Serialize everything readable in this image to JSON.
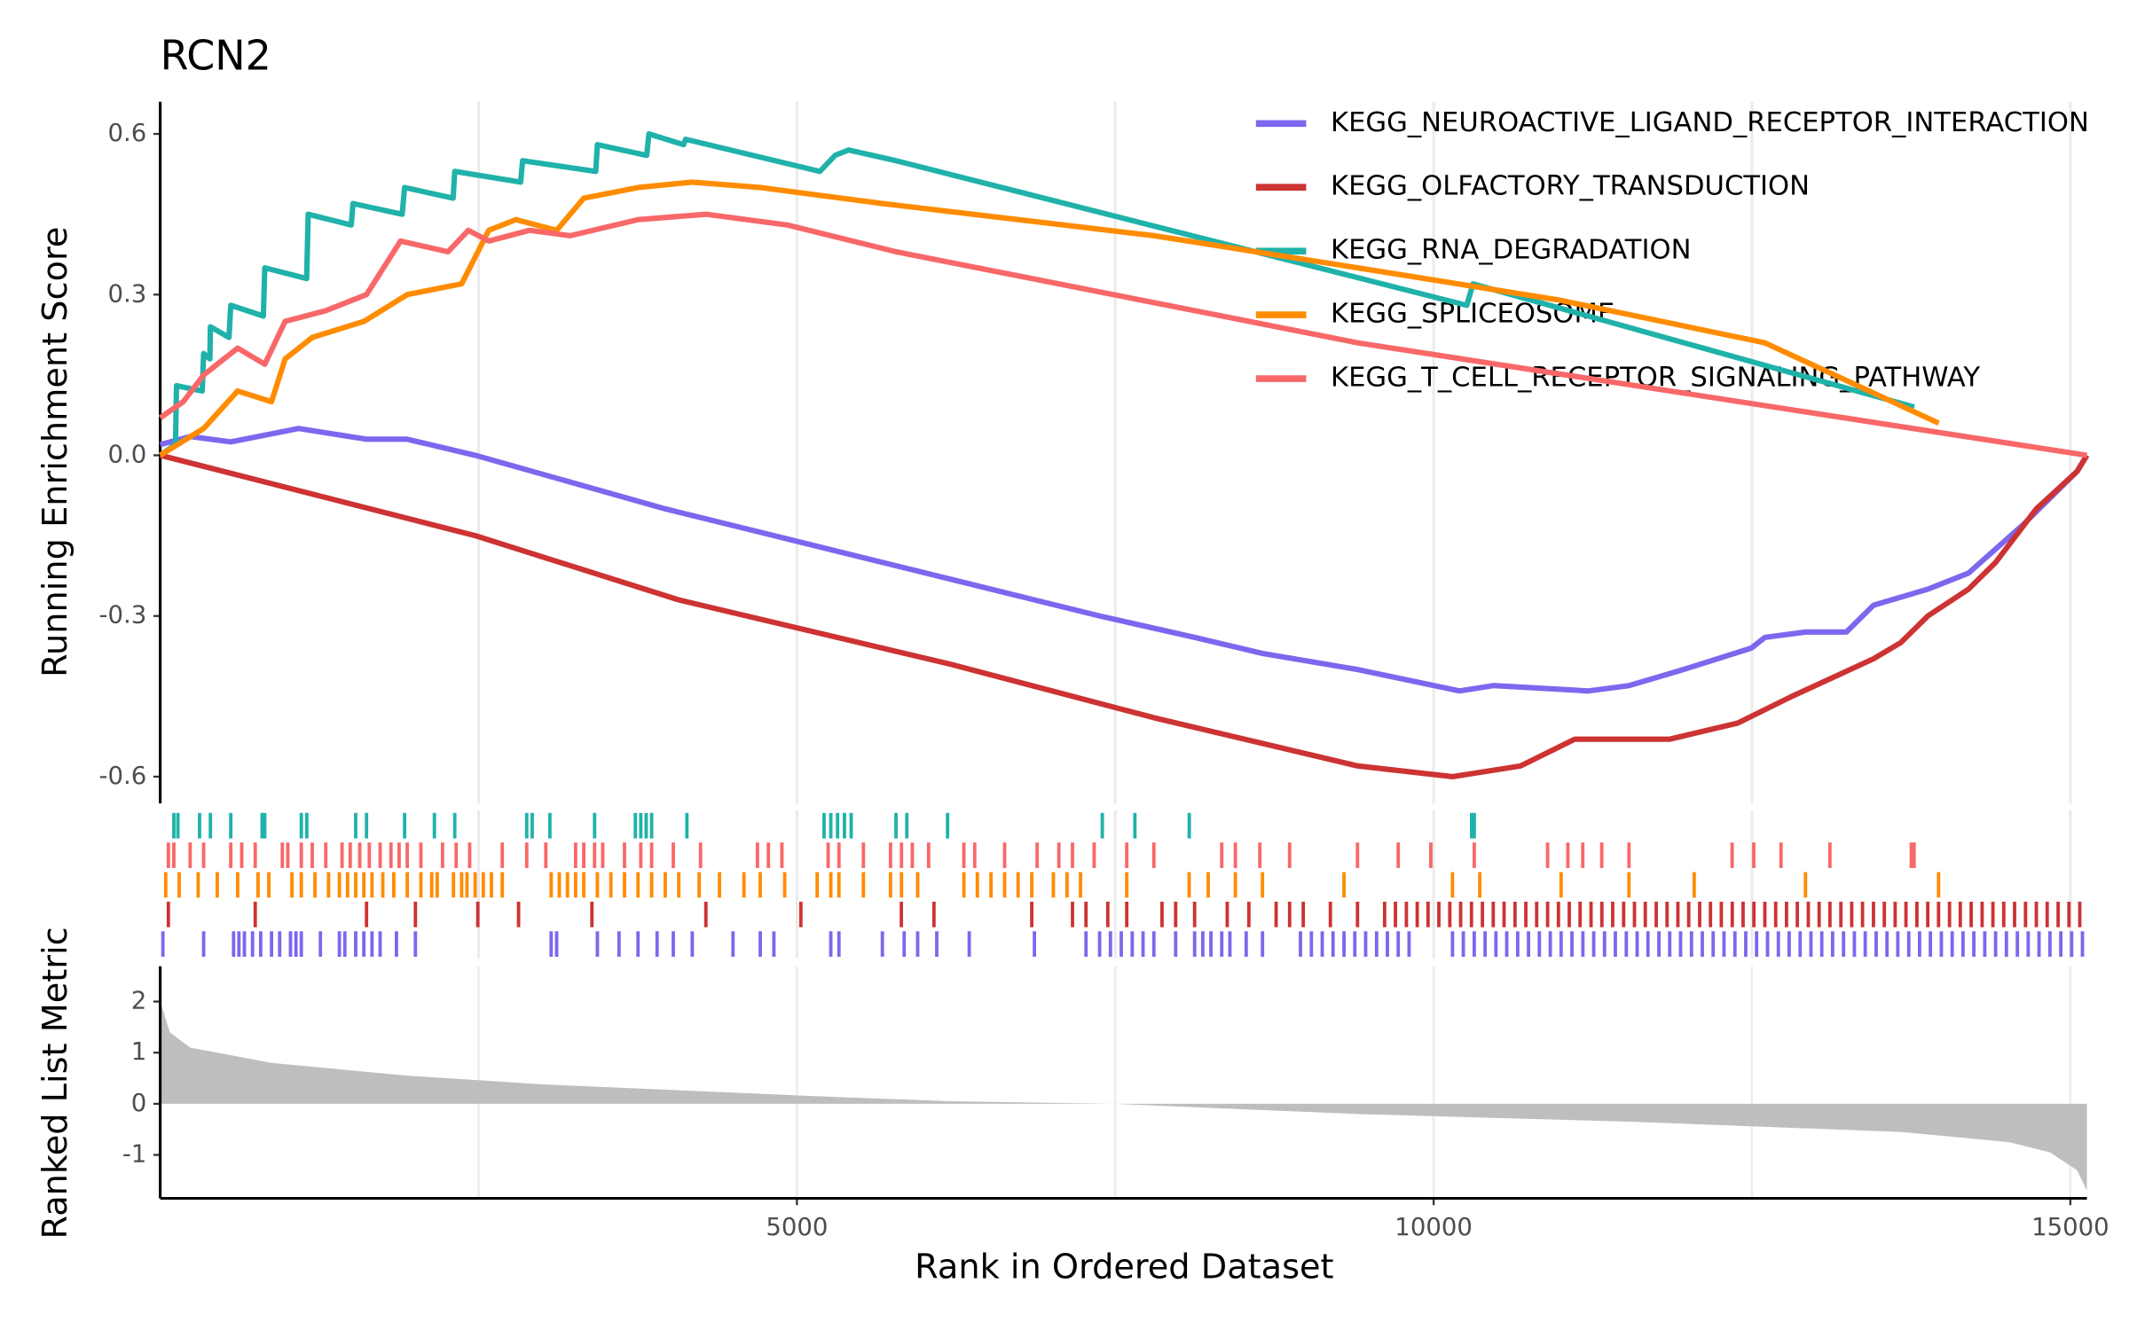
{
  "chart_data": [
    {
      "type": "line",
      "title": "RCN2",
      "ylabel": "Running Enrichment Score",
      "xlim": [
        0,
        15130
      ],
      "ylim": [
        -0.65,
        0.66
      ],
      "yticks": [
        -0.6,
        -0.3,
        {
          "value": 0,
          "label": "0.0"
        },
        0.3,
        0.6
      ],
      "xgrid": [
        2500,
        5000,
        7500,
        10000,
        12500,
        15000
      ],
      "series": [
        {
          "name": "KEGG_NEUROACTIVE_LIGAND_RECEPTOR_INTERACTION",
          "color": "#7b68ee",
          "x": [
            0,
            235,
            554,
            1087,
            1620,
            1940,
            2473,
            3220,
            3966,
            4819,
            5672,
            6525,
            7377,
            8124,
            8657,
            9403,
            10203,
            10469,
            11215,
            11535,
            11962,
            12495,
            12601,
            12921,
            13241,
            13454,
            13881,
            14200,
            14627,
            14840,
            15053,
            15130
          ],
          "values": [
            0.02,
            0.035,
            0.025,
            0.05,
            0.03,
            0.03,
            0,
            -0.05,
            -0.1,
            -0.15,
            -0.2,
            -0.25,
            -0.3,
            -0.34,
            -0.37,
            -0.4,
            -0.44,
            -0.43,
            -0.44,
            -0.43,
            -0.4,
            -0.36,
            -0.34,
            -0.33,
            -0.33,
            -0.28,
            -0.25,
            -0.22,
            -0.13,
            -0.08,
            -0.03,
            0
          ]
        },
        {
          "name": "KEGG_OLFACTORY_TRANSDUCTION",
          "color": "#cd3333",
          "x": [
            0,
            2473,
            4072,
            6204,
            7804,
            9403,
            10149,
            10682,
            11109,
            11855,
            12388,
            12814,
            13454,
            13667,
            13881,
            14200,
            14413,
            14733,
            15053,
            15130
          ],
          "values": [
            0,
            -0.15,
            -0.27,
            -0.39,
            -0.49,
            -0.58,
            -0.6,
            -0.58,
            -0.53,
            -0.53,
            -0.5,
            -0.45,
            -0.38,
            -0.35,
            -0.3,
            -0.25,
            -0.2,
            -0.1,
            -0.03,
            0
          ]
        },
        {
          "name": "KEGG_RNA_DEGRADATION",
          "color": "#20b2aa",
          "x": [
            0,
            120,
            128,
            330,
            341,
            390,
            394,
            540,
            554,
            810,
            821,
            1150,
            1162,
            1500,
            1514,
            1900,
            1919,
            2300,
            2313,
            2830,
            2846,
            3420,
            3433,
            3820,
            3838,
            4110,
            4126,
            5180,
            5300,
            5405,
            5778,
            10260,
            10309,
            13774
          ],
          "values": [
            0,
            0.02,
            0.13,
            0.12,
            0.19,
            0.18,
            0.24,
            0.22,
            0.28,
            0.26,
            0.35,
            0.33,
            0.45,
            0.43,
            0.47,
            0.45,
            0.5,
            0.48,
            0.53,
            0.51,
            0.55,
            0.53,
            0.58,
            0.56,
            0.6,
            0.58,
            0.59,
            0.53,
            0.56,
            0.57,
            0.55,
            0.28,
            0.32,
            0.09
          ]
        },
        {
          "name": "KEGG_SPLICEOSOME",
          "color": "#ff8c00",
          "x": [
            0,
            341,
            608,
            874,
            981,
            1194,
            1600,
            1940,
            2367,
            2580,
            2793,
            3113,
            3326,
            3753,
            4179,
            4712,
            5672,
            7804,
            9403,
            10981,
            12601,
            13966
          ],
          "values": [
            0,
            0.05,
            0.12,
            0.1,
            0.18,
            0.22,
            0.25,
            0.3,
            0.32,
            0.42,
            0.44,
            0.42,
            0.48,
            0.5,
            0.51,
            0.5,
            0.47,
            0.41,
            0.35,
            0.29,
            0.21,
            0.06
          ]
        },
        {
          "name": "KEGG_T_CELL_RECEPTOR_SIGNALING_PATHWAY",
          "color": "#f86868",
          "x": [
            0,
            181,
            341,
            608,
            821,
            981,
            1300,
            1620,
            1887,
            2260,
            2420,
            2580,
            2900,
            3220,
            3753,
            4286,
            4925,
            5778,
            7271,
            8337,
            9403,
            15130
          ],
          "values": [
            0.07,
            0.1,
            0.15,
            0.2,
            0.17,
            0.25,
            0.27,
            0.3,
            0.4,
            0.38,
            0.42,
            0.4,
            0.42,
            0.41,
            0.44,
            0.45,
            0.43,
            0.38,
            0.31,
            0.26,
            0.21,
            0
          ]
        }
      ]
    },
    {
      "type": "rug",
      "xlim": [
        0,
        15130
      ],
      "xgrid": [
        2500,
        5000,
        7500,
        10000,
        12500,
        15000
      ],
      "series": [
        {
          "color": "#20b2aa",
          "x": [
            107,
            139,
            309,
            394,
            554,
            800,
            821,
            1108,
            1151,
            1535,
            1620,
            1919,
            2153,
            2313,
            2878,
            2921,
            3060,
            3411,
            3731,
            3774,
            3816,
            3859,
            4136,
            5213,
            5266,
            5319,
            5373,
            5426,
            5778,
            5863,
            6183,
            7398,
            7654,
            8081,
            10298,
            10319
          ]
        },
        {
          "color": "#f86868",
          "x": [
            64,
            107,
            235,
            341,
            554,
            640,
            746,
            959,
            1002,
            1108,
            1194,
            1300,
            1428,
            1492,
            1567,
            1642,
            1727,
            1812,
            1876,
            1940,
            2047,
            2217,
            2324,
            2430,
            2686,
            2878,
            3028,
            3262,
            3326,
            3411,
            3475,
            3646,
            3774,
            3859,
            4029,
            4243,
            4690,
            4776,
            4882,
            5245,
            5330,
            5522,
            5735,
            5821,
            5906,
            6034,
            6311,
            6396,
            6631,
            6886,
            7057,
            7164,
            7334,
            7590,
            7803,
            8336,
            8443,
            8635,
            8869,
            9402,
            9722,
            9978,
            10319,
            10895,
            11054,
            11171,
            11320,
            11534,
            12344,
            12514,
            12728,
            13112,
            13751,
            13773
          ]
        },
        {
          "color": "#ff8c00",
          "x": [
            43,
            149,
            298,
            448,
            608,
            768,
            853,
            1034,
            1108,
            1215,
            1322,
            1407,
            1471,
            1535,
            1599,
            1663,
            1748,
            1834,
            1940,
            2047,
            2132,
            2175,
            2303,
            2367,
            2409,
            2473,
            2537,
            2601,
            2686,
            3070,
            3134,
            3198,
            3262,
            3326,
            3433,
            3539,
            3646,
            3752,
            3859,
            3966,
            4072,
            4232,
            4392,
            4584,
            4712,
            4904,
            5159,
            5266,
            5330,
            5522,
            5735,
            5821,
            5948,
            6311,
            6417,
            6524,
            6631,
            6737,
            6844,
            7014,
            7121,
            7227,
            7590,
            8080,
            8230,
            8443,
            8656,
            9296,
            10148,
            10362,
            11001,
            11534,
            12046,
            12920,
            13965
          ]
        },
        {
          "color": "#cd3333",
          "x": [
            64,
            746,
            1620,
            2004,
            2494,
            2814,
            3390,
            4285,
            5031,
            5820,
            6076,
            6844,
            7164,
            7270,
            7441,
            7590,
            7867,
            7974,
            8123,
            8379,
            8549,
            8763,
            8869,
            8976,
            9189,
            9402,
            9615,
            9700,
            9786,
            9871,
            9956,
            10041,
            10127,
            10212,
            10297,
            10383,
            10468,
            10553,
            10639,
            10724,
            10809,
            10895,
            10980,
            11065,
            11150,
            11236,
            11321,
            11406,
            11492,
            11577,
            11662,
            11748,
            11833,
            11918,
            12003,
            12089,
            12174,
            12259,
            12345,
            12430,
            12515,
            12601,
            12686,
            12771,
            12856,
            12942,
            13027,
            13112,
            13198,
            13283,
            13368,
            13454,
            13539,
            13624,
            13709,
            13795,
            13880,
            13965,
            14051,
            14136,
            14221,
            14307,
            14392,
            14477,
            14562,
            14648,
            14733,
            14818,
            14904,
            14989,
            15074
          ]
        },
        {
          "color": "#7b68ee",
          "x": [
            21,
            341,
            576,
            618,
            661,
            725,
            789,
            874,
            938,
            1023,
            1066,
            1108,
            1258,
            1407,
            1450,
            1535,
            1599,
            1663,
            1727,
            1855,
            2004,
            3070,
            3113,
            3433,
            3603,
            3752,
            3902,
            4029,
            4178,
            4498,
            4712,
            4819,
            5266,
            5330,
            5671,
            5842,
            5948,
            6098,
            6353,
            6865,
            7270,
            7377,
            7462,
            7547,
            7633,
            7718,
            7803,
            7974,
            8123,
            8187,
            8251,
            8336,
            8400,
            8528,
            8656,
            8954,
            9040,
            9125,
            9210,
            9296,
            9381,
            9466,
            9552,
            9637,
            9722,
            9807,
            10148,
            10233,
            10319,
            10404,
            10489,
            10574,
            10660,
            10745,
            10830,
            10916,
            11001,
            11086,
            11172,
            11257,
            11342,
            11427,
            11513,
            11598,
            11683,
            11769,
            11854,
            11939,
            12025,
            12110,
            12195,
            12280,
            12366,
            12451,
            12536,
            12622,
            12707,
            12792,
            12878,
            12963,
            13048,
            13133,
            13219,
            13304,
            13389,
            13475,
            13560,
            13645,
            13731,
            13816,
            13901,
            13987,
            14072,
            14157,
            14242,
            14328,
            14413,
            14498,
            14584,
            14669,
            14754,
            14840,
            14925,
            15010,
            15095
          ]
        }
      ]
    },
    {
      "type": "area",
      "ylabel": "Ranked List Metric",
      "xlabel": "Rank in Ordered Dataset",
      "xlim": [
        0,
        15130
      ],
      "ylim": [
        -1.85,
        2.69
      ],
      "yticks": [
        -1,
        0,
        1,
        2
      ],
      "xticks": [
        5000,
        10000,
        15000
      ],
      "minor_xticks": [
        2500,
        7500,
        12500
      ],
      "color": "#bebebe",
      "x": [
        1,
        75,
        235,
        874,
        1940,
        3006,
        5138,
        6204,
        7483,
        9403,
        11535,
        13667,
        14520,
        14840,
        15053,
        15130
      ],
      "values": [
        2.0,
        1.4,
        1.1,
        0.8,
        0.55,
        0.38,
        0.15,
        0.05,
        0,
        -0.2,
        -0.35,
        -0.55,
        -0.75,
        -0.95,
        -1.3,
        -1.7
      ]
    }
  ]
}
